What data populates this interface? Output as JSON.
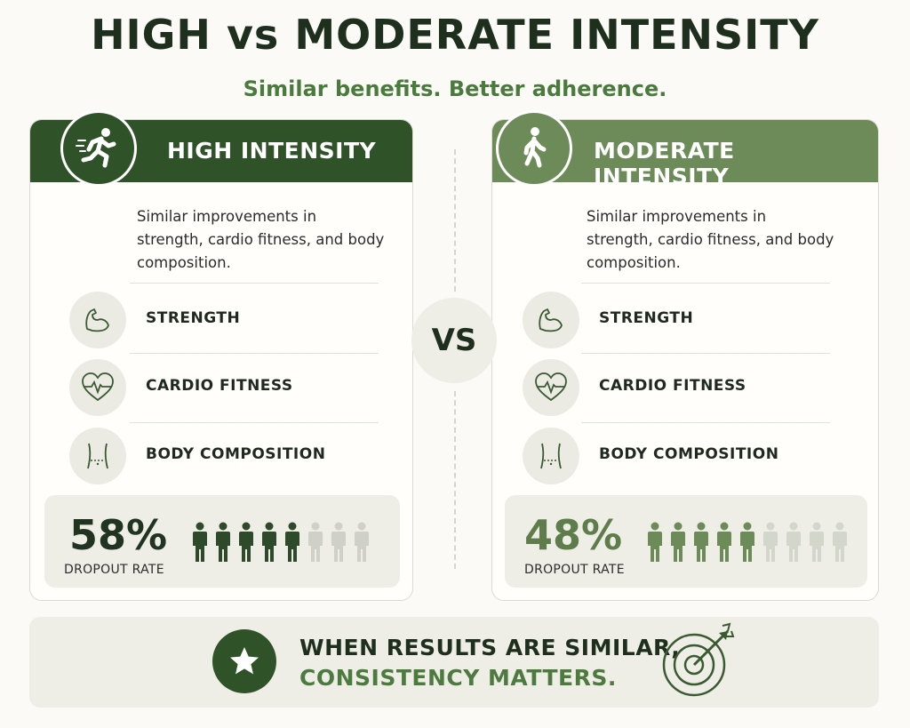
{
  "header": {
    "title": "HIGH vs MODERATE INTENSITY",
    "subtitle": "Similar benefits. Better adherence."
  },
  "colors": {
    "dark_green": "#2f5229",
    "light_green": "#6d8b58",
    "accent_text": "#4a7a3d",
    "panel_bg": "#efeee6"
  },
  "high": {
    "label": "HIGH INTENSITY",
    "icon": "running-person-icon",
    "description": "Similar improvements in strength, cardio fitness, and body composition.",
    "benefits": [
      {
        "label": "STRENGTH",
        "icon": "flexed-arm-icon"
      },
      {
        "label": "CARDIO FITNESS",
        "icon": "heart-pulse-icon"
      },
      {
        "label": "BODY COMPOSITION",
        "icon": "torso-icon"
      }
    ],
    "dropout": {
      "value": "58%",
      "label": "DROPOUT RATE",
      "filled_people": 5,
      "total_people": 8
    }
  },
  "moderate": {
    "label": "MODERATE INTENSITY",
    "icon": "walking-person-icon",
    "description": "Similar improvements in strength, cardio fitness, and body composition.",
    "benefits": [
      {
        "label": "STRENGTH",
        "icon": "flexed-arm-icon"
      },
      {
        "label": "CARDIO FITNESS",
        "icon": "heart-pulse-icon"
      },
      {
        "label": "BODY COMPOSITION",
        "icon": "torso-icon"
      }
    ],
    "dropout": {
      "value": "48%",
      "label": "DROPOUT RATE",
      "filled_people": 5,
      "total_people": 9
    }
  },
  "vs": "VS",
  "footer": {
    "line1": "WHEN RESULTS ARE SIMILAR,",
    "line2": "CONSISTENCY MATTERS.",
    "icons": [
      "star-icon",
      "target-arrow-icon"
    ]
  }
}
